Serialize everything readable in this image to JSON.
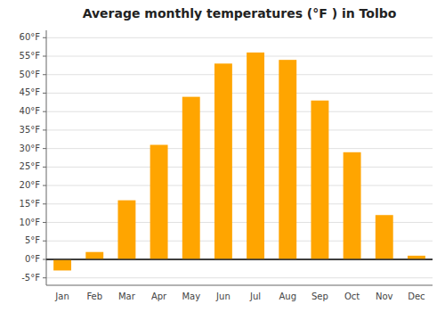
{
  "chart_data": {
    "type": "bar",
    "title": "Average monthly temperatures (°F ) in Tolbo",
    "categories": [
      "Jan",
      "Feb",
      "Mar",
      "Apr",
      "May",
      "Jun",
      "Jul",
      "Aug",
      "Sep",
      "Oct",
      "Nov",
      "Dec"
    ],
    "values": [
      -3,
      2,
      16,
      31,
      44,
      53,
      56,
      54,
      43,
      29,
      12,
      1
    ],
    "color": "#FFA500",
    "ylim": [
      -7,
      62
    ],
    "yticks": [
      {
        "value": -5,
        "label": "-5°F"
      },
      {
        "value": 0,
        "label": "0°F"
      },
      {
        "value": 5,
        "label": "5°F"
      },
      {
        "value": 10,
        "label": "10°F"
      },
      {
        "value": 15,
        "label": "15°F"
      },
      {
        "value": 20,
        "label": "20°F"
      },
      {
        "value": 25,
        "label": "25°F"
      },
      {
        "value": 30,
        "label": "30°F"
      },
      {
        "value": 35,
        "label": "35°F"
      },
      {
        "value": 40,
        "label": "40°F"
      },
      {
        "value": 45,
        "label": "45°F"
      },
      {
        "value": 50,
        "label": "50°F"
      },
      {
        "value": 55,
        "label": "55°F"
      },
      {
        "value": 60,
        "label": "60°F"
      }
    ],
    "grid": true
  }
}
